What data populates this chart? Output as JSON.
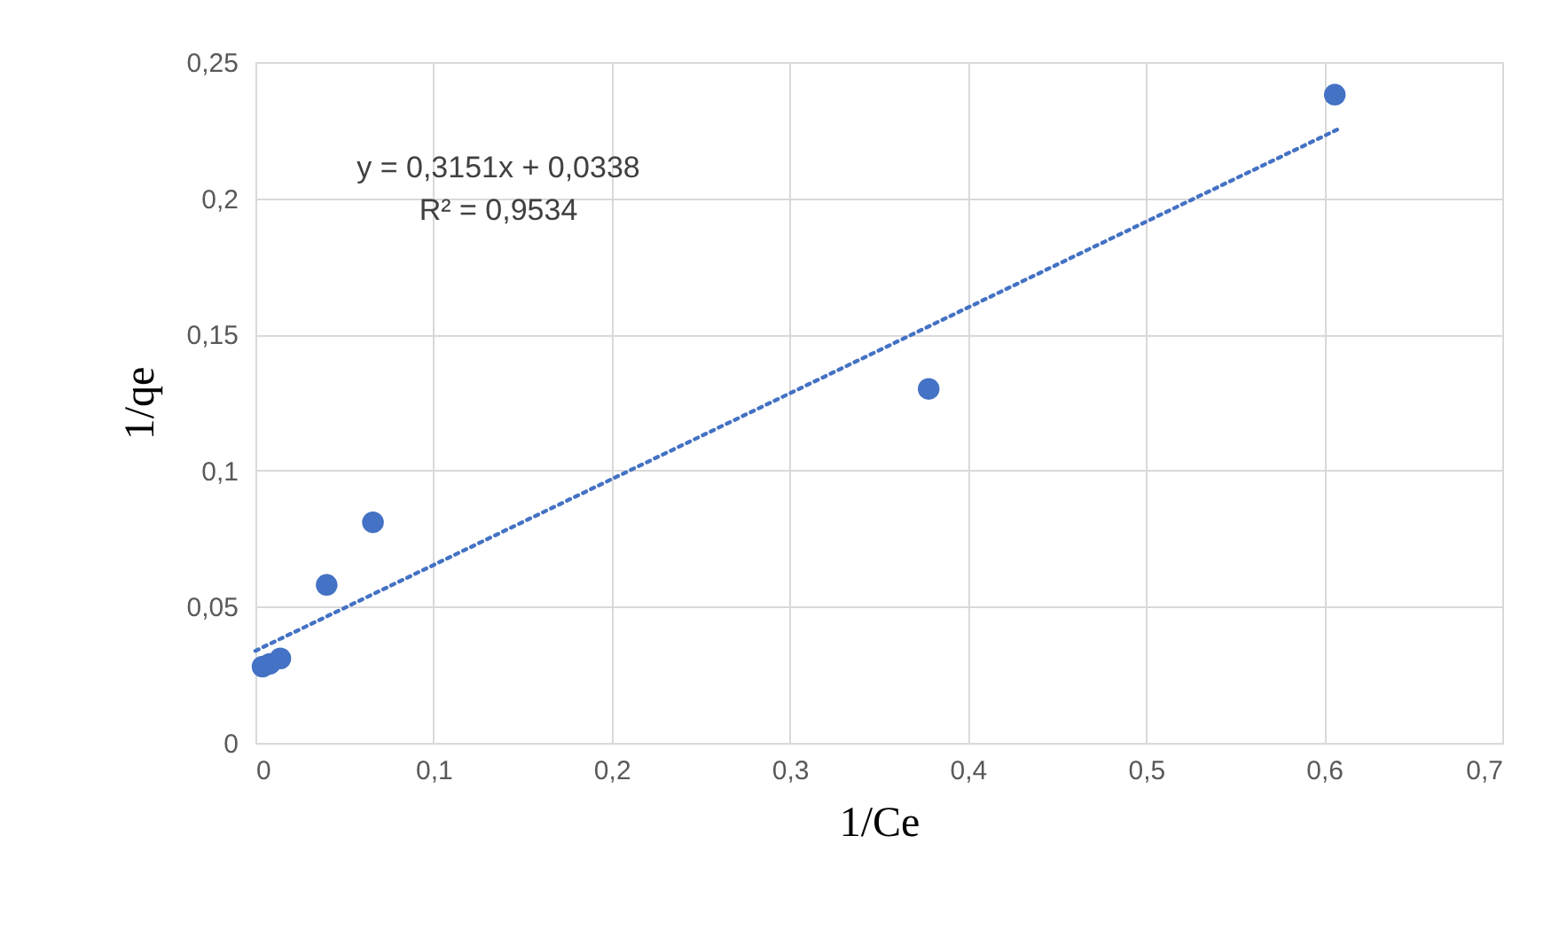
{
  "chart_data": {
    "type": "scatter",
    "xlabel": "1/Ce",
    "ylabel": "1/qe",
    "xlim": [
      0,
      0.7
    ],
    "xticks": [
      {
        "value": 0,
        "label": "0"
      },
      {
        "value": 0.1,
        "label": "0,1"
      },
      {
        "value": 0.2,
        "label": "0,2"
      },
      {
        "value": 0.3,
        "label": "0,3"
      },
      {
        "value": 0.4,
        "label": "0,4"
      },
      {
        "value": 0.5,
        "label": "0,5"
      },
      {
        "value": 0.6,
        "label": "0,6"
      },
      {
        "value": 0.7,
        "label": "0,7"
      }
    ],
    "ylim": [
      0,
      0.25
    ],
    "yticks": [
      {
        "value": 0,
        "label": "0"
      },
      {
        "value": 0.05,
        "label": "0,05"
      },
      {
        "value": 0.1,
        "label": "0,1"
      },
      {
        "value": 0.15,
        "label": "0,15"
      },
      {
        "value": 0.2,
        "label": "0,2"
      },
      {
        "value": 0.25,
        "label": "0,25"
      }
    ],
    "grid": true,
    "marker": "circle",
    "series": [
      {
        "color": "#4472c4",
        "x": [
          0.004,
          0.008,
          0.014,
          0.04,
          0.066,
          0.378,
          0.606
        ],
        "values": [
          0.028,
          0.029,
          0.031,
          0.058,
          0.081,
          0.13,
          0.238
        ]
      },
      {
        "type": "line",
        "color": "#4472c4",
        "line_style": "dotted",
        "marker": "none",
        "x": [
          0,
          0.608
        ],
        "values": [
          0.0338,
          0.2254
        ]
      }
    ],
    "annotations": [
      "y = 0,3151x + 0,0338",
      "R² = 0,9534"
    ]
  }
}
